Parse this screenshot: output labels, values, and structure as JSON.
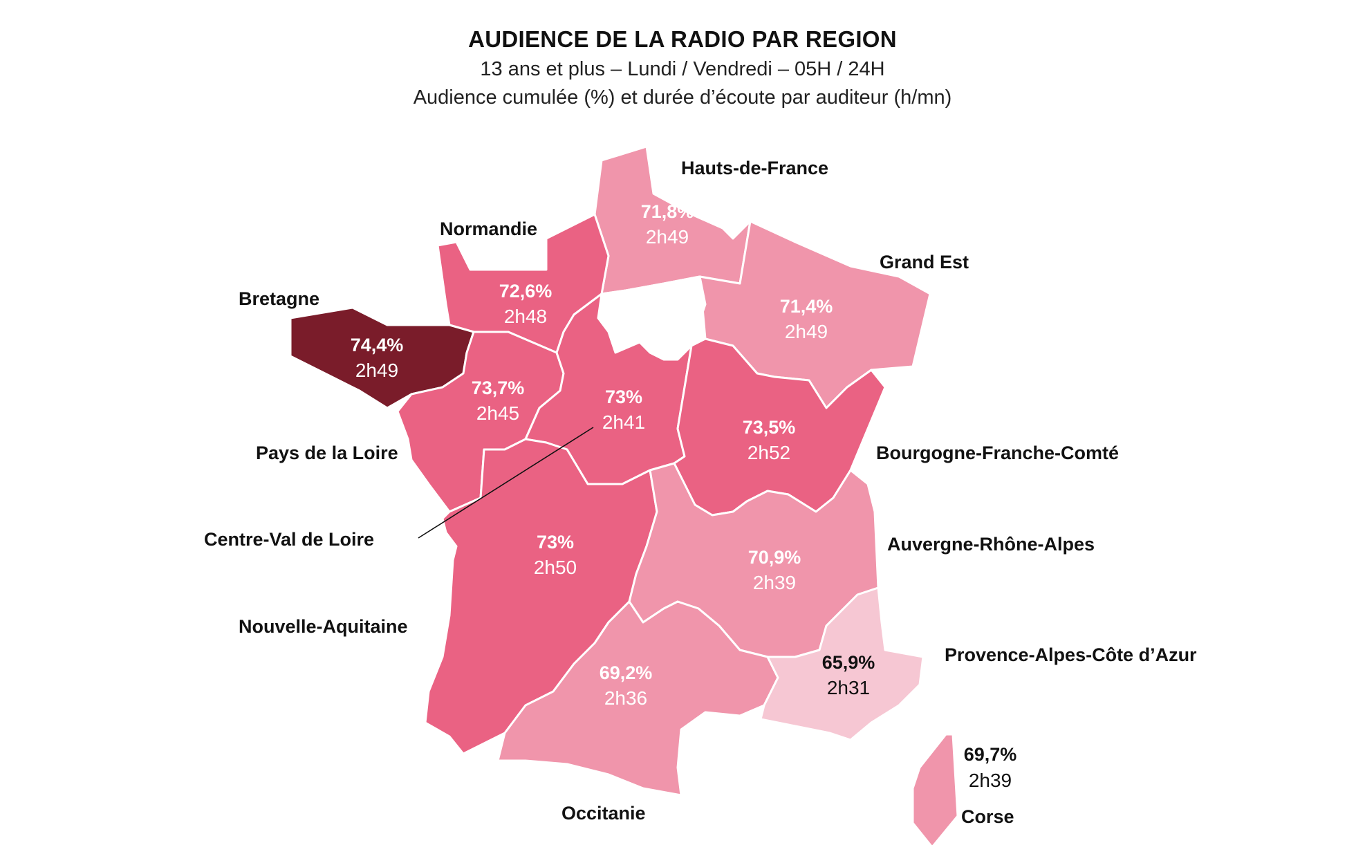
{
  "title": "AUDIENCE DE LA RADIO PAR REGION",
  "subtitle1": "13 ans et plus – Lundi / Vendredi – 05H / 24H",
  "subtitle2": "Audience cumulée (%) et durée d’écoute par auditeur (h/mn)",
  "colors": {
    "darkest": "#7a1c2a",
    "strong": "#ea6283",
    "medium": "#f095ab",
    "light": "#f6c7d3"
  },
  "regions": {
    "hauts_de_france": {
      "name": "Hauts-de-France",
      "audience": "71,8%",
      "duration": "2h49"
    },
    "normandie": {
      "name": "Normandie",
      "audience": "72,6%",
      "duration": "2h48"
    },
    "grand_est": {
      "name": "Grand Est",
      "audience": "71,4%",
      "duration": "2h49"
    },
    "bretagne": {
      "name": "Bretagne",
      "audience": "74,4%",
      "duration": "2h49"
    },
    "pays_de_la_loire": {
      "name": "Pays de la Loire",
      "audience": "73,7%",
      "duration": "2h45"
    },
    "centre_val_de_loire": {
      "name": "Centre-Val de Loire",
      "audience": "73%",
      "duration": "2h41"
    },
    "bourgogne_franche_comte": {
      "name": "Bourgogne-Franche-Comté",
      "audience": "73,5%",
      "duration": "2h52"
    },
    "nouvelle_aquitaine": {
      "name": "Nouvelle-Aquitaine",
      "audience": "73%",
      "duration": "2h50"
    },
    "auvergne_rhone_alpes": {
      "name": "Auvergne-Rhône-Alpes",
      "audience": "70,9%",
      "duration": "2h39"
    },
    "occitanie": {
      "name": "Occitanie",
      "audience": "69,2%",
      "duration": "2h36"
    },
    "provence_alpes_cote_d_azur": {
      "name": "Provence-Alpes-Côte d’Azur",
      "audience": "65,9%",
      "duration": "2h31"
    },
    "corse": {
      "name": "Corse",
      "audience": "69,7%",
      "duration": "2h39"
    }
  }
}
